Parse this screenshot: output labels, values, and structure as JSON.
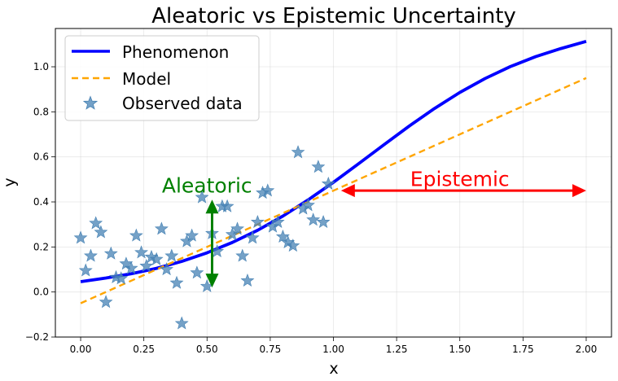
{
  "chart_data": {
    "type": "line",
    "title": "Aleatoric vs Epistemic Uncertainty",
    "xlabel": "x",
    "ylabel": "y",
    "xlim": [
      -0.1,
      2.1
    ],
    "ylim": [
      -0.2,
      1.17
    ],
    "xticks": [
      0.0,
      0.25,
      0.5,
      0.75,
      1.0,
      1.25,
      1.5,
      1.75,
      2.0
    ],
    "xtick_labels": [
      "0.00",
      "0.25",
      "0.50",
      "0.75",
      "1.00",
      "1.25",
      "1.50",
      "1.75",
      "2.00"
    ],
    "yticks": [
      -0.2,
      0.0,
      0.2,
      0.4,
      0.6,
      0.8,
      1.0
    ],
    "ytick_labels": [
      "−0.2",
      "0.0",
      "0.2",
      "0.4",
      "0.6",
      "0.8",
      "1.0"
    ],
    "grid": true,
    "legend_position": "top-left",
    "series": [
      {
        "name": "Phenomenon",
        "kind": "line",
        "color": "#0000ff",
        "x": [
          0.0,
          0.1,
          0.2,
          0.3,
          0.4,
          0.5,
          0.6,
          0.7,
          0.8,
          0.9,
          1.0,
          1.1,
          1.2,
          1.3,
          1.4,
          1.5,
          1.6,
          1.7,
          1.8,
          1.9,
          2.0
        ],
        "y": [
          0.046,
          0.062,
          0.081,
          0.105,
          0.136,
          0.174,
          0.22,
          0.274,
          0.337,
          0.409,
          0.487,
          0.57,
          0.654,
          0.737,
          0.815,
          0.886,
          0.948,
          1.001,
          1.045,
          1.081,
          1.113
        ]
      },
      {
        "name": "Model",
        "kind": "dashed-line",
        "color": "#ffa500",
        "x": [
          0.0,
          2.0
        ],
        "y": [
          -0.05,
          0.95
        ]
      },
      {
        "name": "Observed data",
        "kind": "scatter",
        "color": "#4682b4",
        "x": [
          0.0,
          0.02,
          0.04,
          0.06,
          0.08,
          0.1,
          0.12,
          0.14,
          0.16,
          0.18,
          0.2,
          0.22,
          0.24,
          0.26,
          0.28,
          0.3,
          0.32,
          0.34,
          0.36,
          0.38,
          0.4,
          0.42,
          0.44,
          0.46,
          0.48,
          0.5,
          0.52,
          0.54,
          0.56,
          0.58,
          0.6,
          0.62,
          0.64,
          0.66,
          0.68,
          0.7,
          0.72,
          0.74,
          0.76,
          0.78,
          0.8,
          0.82,
          0.84,
          0.86,
          0.88,
          0.9,
          0.92,
          0.94,
          0.96,
          0.98
        ],
        "y": [
          0.24,
          0.095,
          0.16,
          0.305,
          0.265,
          -0.045,
          0.17,
          0.065,
          0.06,
          0.125,
          0.105,
          0.25,
          0.175,
          0.115,
          0.155,
          0.145,
          0.28,
          0.1,
          0.16,
          0.04,
          -0.14,
          0.225,
          0.25,
          0.085,
          0.42,
          0.025,
          0.26,
          0.18,
          0.38,
          0.38,
          0.255,
          0.28,
          0.16,
          0.05,
          0.24,
          0.31,
          0.44,
          0.45,
          0.29,
          0.31,
          0.245,
          0.22,
          0.205,
          0.62,
          0.37,
          0.385,
          0.32,
          0.555,
          0.31,
          0.48
        ]
      }
    ],
    "annotations": [
      {
        "text": "Aleatoric",
        "color": "#008000",
        "arrow": "double",
        "x": 0.52,
        "y_from": 0.02,
        "y_to": 0.41,
        "label_x": 0.5,
        "label_y": 0.47
      },
      {
        "text": "Epistemic",
        "color": "#ff0000",
        "arrow": "double",
        "y": 0.45,
        "x_from": 1.03,
        "x_to": 2.0,
        "label_x": 1.5,
        "label_y": 0.5
      }
    ]
  }
}
